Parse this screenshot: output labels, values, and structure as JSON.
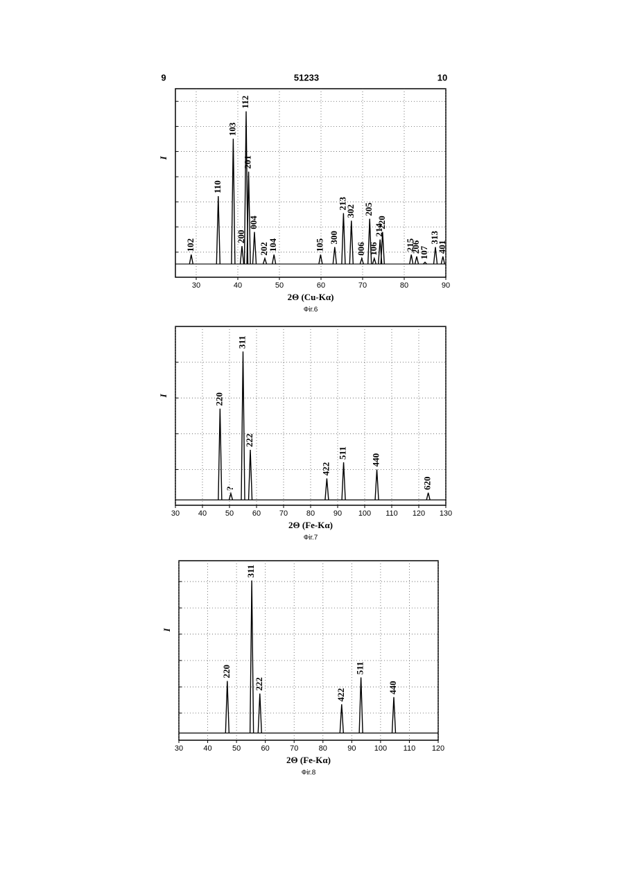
{
  "page_header": {
    "left": "9",
    "center": "51233",
    "right": "10"
  },
  "chart_data": [
    {
      "type": "peaks",
      "xlabel": "2Θ (Cu-Kα)",
      "ylabel": "I",
      "caption": "Фіг.6",
      "xlim": [
        25,
        90
      ],
      "xticks": [
        30,
        40,
        50,
        60,
        70,
        80,
        90
      ],
      "ylim": [
        0,
        100
      ],
      "ygrid": [
        13.3,
        26.7,
        40,
        53.3,
        66.7,
        80,
        93.3
      ],
      "grid": true,
      "baseline": 7,
      "color": "#000000",
      "x": [
        28.8,
        35.3,
        38.9,
        41.0,
        42.0,
        42.6,
        44.0,
        46.5,
        48.7,
        59.9,
        63.3,
        65.4,
        67.3,
        69.8,
        71.7,
        72.8,
        74.2,
        74.8,
        81.7,
        83.0,
        85.0,
        87.5,
        89.3
      ],
      "values": [
        12,
        43,
        73.5,
        16.5,
        88,
        56,
        24,
        10,
        12,
        12,
        16,
        34,
        30,
        10,
        31,
        10,
        20,
        24,
        12,
        11,
        8,
        16,
        11
      ],
      "labels": [
        "102",
        "110",
        "103",
        "200",
        "112",
        "201",
        "004",
        "202",
        "104",
        "105",
        "300",
        "213",
        "302",
        "006",
        "205",
        "106",
        "214",
        "220",
        "215",
        "206",
        "107",
        "313",
        "401"
      ]
    },
    {
      "type": "peaks",
      "xlabel": "2Θ (Fe-Kα)",
      "ylabel": "I",
      "caption": "Фіг.7",
      "xlim": [
        30,
        130
      ],
      "xticks": [
        30,
        40,
        50,
        60,
        70,
        80,
        90,
        100,
        110,
        120,
        130
      ],
      "ylim": [
        0,
        100
      ],
      "ygrid": [
        20,
        40,
        60,
        80
      ],
      "grid": true,
      "baseline": 3,
      "color": "#000000",
      "x": [
        46.5,
        50.5,
        55,
        57.7,
        86,
        92.2,
        104.5,
        123.5
      ],
      "values": [
        54,
        6.6,
        86,
        31,
        15,
        24,
        20,
        7
      ],
      "labels": [
        "220",
        "?",
        "311",
        "222",
        "422",
        "511",
        "440",
        "620"
      ]
    },
    {
      "type": "peaks",
      "xlabel": "2Θ (Fe-Kα)",
      "ylabel": "I",
      "caption": "Фіг.8",
      "xlim": [
        30,
        120
      ],
      "xticks": [
        30,
        40,
        50,
        60,
        70,
        80,
        90,
        100,
        110,
        120
      ],
      "ylim": [
        0,
        100
      ],
      "ygrid": [
        15.1,
        29.7,
        44.4,
        59.1,
        73.7,
        88.4
      ],
      "grid": true,
      "baseline": 4,
      "color": "#000000",
      "x": [
        46.8,
        55.3,
        58.1,
        86.5,
        93.2,
        104.6
      ],
      "values": [
        33,
        89,
        26,
        20,
        35,
        24
      ],
      "labels": [
        "220",
        "311",
        "222",
        "422",
        "511",
        "440"
      ]
    }
  ]
}
